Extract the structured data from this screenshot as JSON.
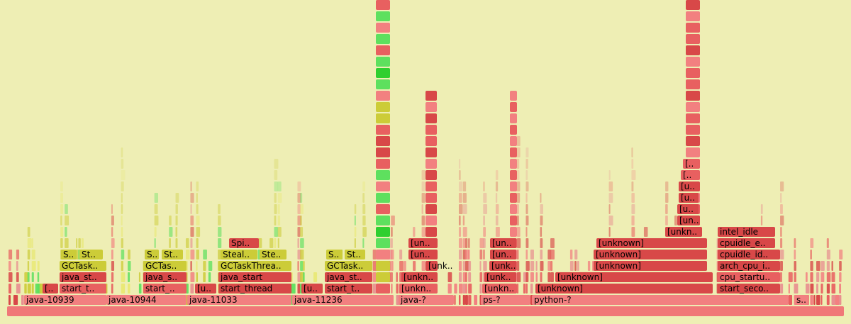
{
  "frames": [
    {
      "label": "java-10939"
    },
    {
      "label": "java-10944"
    },
    {
      "label": "java-11033"
    },
    {
      "label": "java-11236"
    },
    {
      "label": "java-?"
    },
    {
      "label": "ps-?"
    },
    {
      "label": "python-?"
    },
    {
      "label": "s.."
    },
    {
      "label": "[.."
    },
    {
      "label": "start_t.."
    },
    {
      "label": "start_.."
    },
    {
      "label": "[u.."
    },
    {
      "label": "start_thread"
    },
    {
      "label": "[u.."
    },
    {
      "label": "start_t.."
    },
    {
      "label": "[unkn.."
    },
    {
      "label": "[unkn.."
    },
    {
      "label": "[unknown]"
    },
    {
      "label": "start_seco.."
    },
    {
      "label": "java_st.."
    },
    {
      "label": "java_s.."
    },
    {
      "label": "java_start"
    },
    {
      "label": "java_st.."
    },
    {
      "label": "[unkn.."
    },
    {
      "label": "[unk.."
    },
    {
      "label": "[unknown]"
    },
    {
      "label": "cpu_startu.."
    },
    {
      "label": "GCTask.."
    },
    {
      "label": "GCTas.."
    },
    {
      "label": "GCTaskThrea.."
    },
    {
      "label": "GCTask.."
    },
    {
      "label": "[unk.."
    },
    {
      "label": "[unk.."
    },
    {
      "label": "[unknown]"
    },
    {
      "label": "arch_cpu_i.."
    },
    {
      "label": "S.."
    },
    {
      "label": "St.."
    },
    {
      "label": "S.."
    },
    {
      "label": "St.."
    },
    {
      "label": "Steal.."
    },
    {
      "label": "Ste.."
    },
    {
      "label": "S.."
    },
    {
      "label": "St.."
    },
    {
      "label": "[un.."
    },
    {
      "label": "[un.."
    },
    {
      "label": "[unknown]"
    },
    {
      "label": "cpuidle_id.."
    },
    {
      "label": "Spi.."
    },
    {
      "label": "[un.."
    },
    {
      "label": "[un.."
    },
    {
      "label": "[unknown]"
    },
    {
      "label": "cpuidle_e.."
    },
    {
      "label": "[unkn.."
    },
    {
      "label": "intel_idle"
    },
    {
      "label": "[un.."
    },
    {
      "label": "[u.."
    },
    {
      "label": "[u.."
    },
    {
      "label": "[u.."
    },
    {
      "label": "[.."
    },
    {
      "label": "[.."
    }
  ]
}
